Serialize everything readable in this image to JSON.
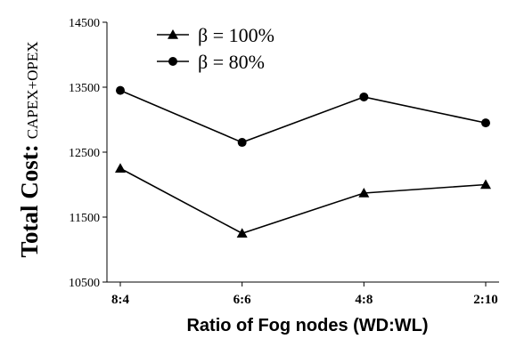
{
  "chart_data": {
    "type": "line",
    "categories": [
      "8:4",
      "6:6",
      "4:8",
      "2:10"
    ],
    "series": [
      {
        "name": "β = 100%",
        "marker": "triangle",
        "values": [
          12250,
          11250,
          11870,
          12000
        ]
      },
      {
        "name": "β = 80%",
        "marker": "circle",
        "values": [
          13450,
          12650,
          13350,
          12950
        ]
      }
    ],
    "ylim": [
      10500,
      14500
    ],
    "yticks": [
      "10500",
      "11500",
      "12500",
      "13500",
      "14500"
    ],
    "xlabel": "Ratio of Fog nodes (WD:WL)",
    "ylabel_main": "Total Cost:",
    "ylabel_sub": "CAPEX+OPEX",
    "grid": false,
    "legend_position": "top-left",
    "colors": {
      "line": "#000000",
      "axis": "#000000"
    }
  }
}
